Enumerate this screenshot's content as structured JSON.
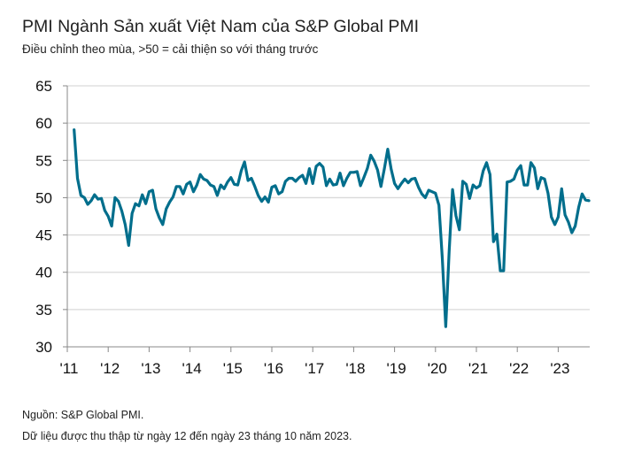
{
  "chart_data": {
    "type": "line",
    "title": "PMI Ngành Sản xuất Việt Nam của S&P Global PMI",
    "subtitle": "Điều chỉnh theo mùa, >50 = cải thiện so với tháng trước",
    "xlabel": "",
    "ylabel": "",
    "ylim": [
      30,
      65
    ],
    "yticks": [
      "30",
      "35",
      "40",
      "45",
      "50",
      "55",
      "60",
      "65"
    ],
    "xticks": [
      "'11",
      "'12",
      "'13",
      "'14",
      "'15",
      "'16",
      "'17",
      "'18",
      "'19",
      "'20",
      "'21",
      "'22",
      "'23"
    ],
    "grid": true,
    "line_color": "#006e8c",
    "x_start": "2011-03",
    "x_end": "2023-10",
    "frequency": "monthly",
    "values": [
      59.1,
      52.6,
      50.3,
      50.0,
      49.1,
      49.6,
      50.4,
      49.8,
      49.9,
      48.3,
      47.5,
      46.2,
      50.0,
      49.5,
      48.2,
      46.4,
      43.6,
      47.9,
      49.2,
      48.9,
      50.4,
      49.2,
      50.8,
      51.0,
      48.5,
      47.3,
      46.4,
      48.5,
      49.4,
      50.1,
      51.5,
      51.5,
      50.5,
      51.8,
      52.1,
      50.8,
      51.7,
      53.1,
      52.5,
      52.3,
      51.7,
      51.5,
      50.3,
      51.7,
      51.2,
      52.1,
      52.7,
      51.8,
      51.7,
      53.6,
      54.8,
      52.3,
      52.6,
      51.5,
      50.3,
      49.5,
      50.1,
      49.4,
      51.4,
      51.6,
      50.5,
      50.8,
      52.2,
      52.6,
      52.6,
      52.2,
      52.7,
      53.0,
      51.9,
      53.9,
      51.9,
      54.2,
      54.6,
      54.1,
      51.6,
      52.5,
      51.7,
      51.8,
      53.3,
      51.6,
      52.6,
      53.4,
      53.4,
      53.5,
      51.6,
      52.7,
      53.9,
      55.7,
      54.9,
      53.7,
      51.5,
      53.9,
      56.5,
      53.8,
      51.9,
      51.2,
      51.9,
      52.5,
      52.0,
      52.5,
      52.6,
      51.4,
      50.5,
      50.0,
      51.0,
      50.8,
      50.6,
      49.0,
      41.9,
      32.7,
      42.7,
      51.1,
      47.6,
      45.7,
      52.2,
      51.8,
      49.9,
      51.7,
      51.3,
      51.6,
      53.6,
      54.7,
      53.1,
      44.1,
      45.1,
      40.2,
      40.2,
      52.1,
      52.2,
      52.5,
      53.7,
      54.3,
      51.7,
      51.7,
      54.7,
      54.0,
      51.2,
      52.7,
      52.5,
      50.6,
      47.4,
      46.4,
      47.4,
      51.2,
      47.7,
      46.7,
      45.3,
      46.2,
      48.7,
      50.5,
      49.7,
      49.6
    ]
  },
  "footer": {
    "source": "Nguồn: S&P Global PMI.",
    "note": "Dữ liệu được thu thập từ ngày 12 đến ngày 23 tháng 10 năm 2023."
  }
}
